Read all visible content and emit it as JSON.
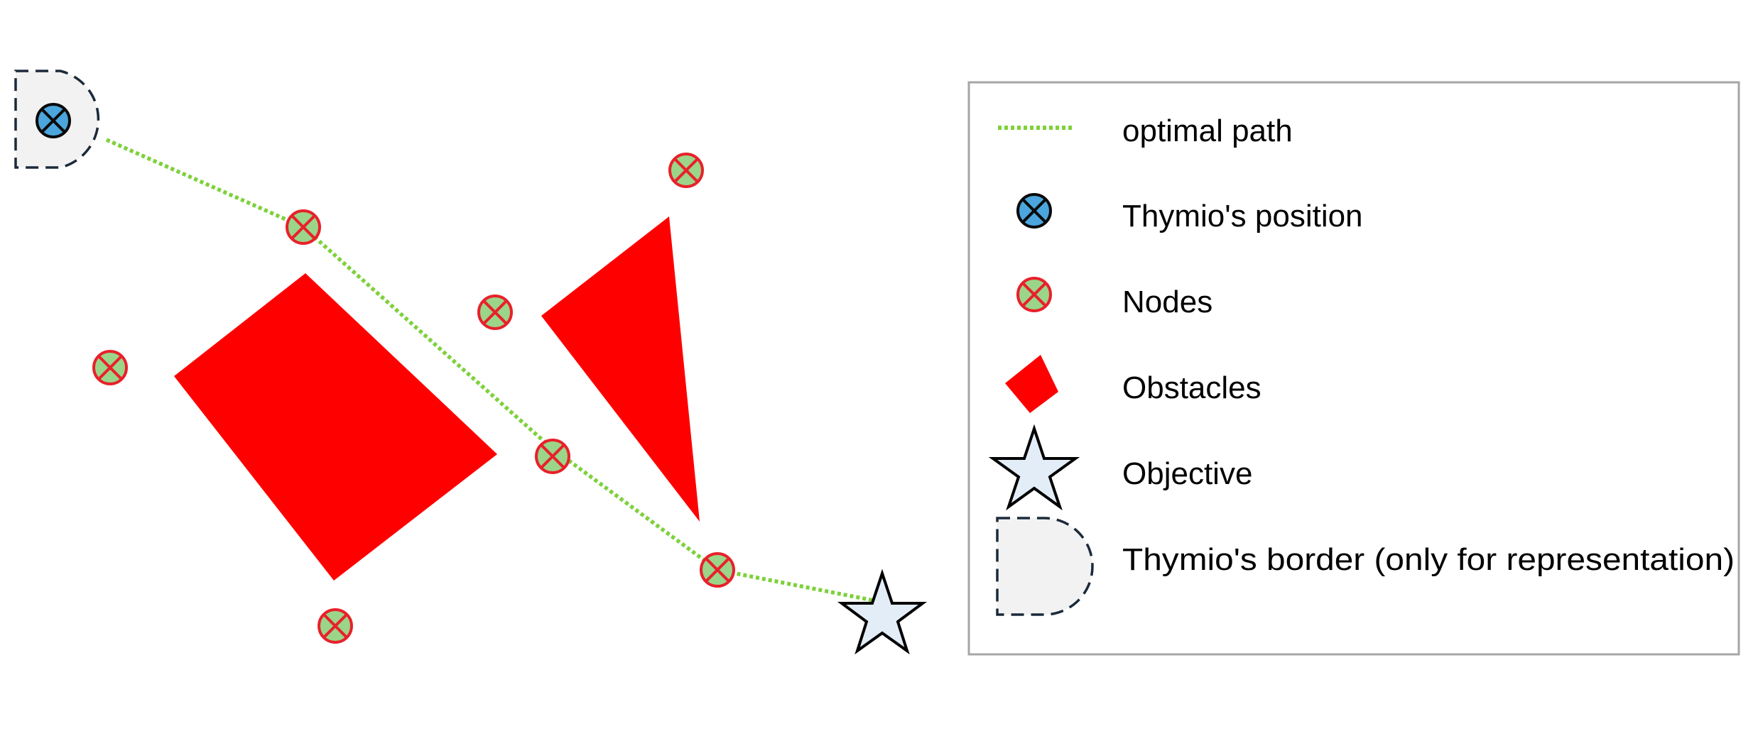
{
  "colors": {
    "path": "#7dd13a",
    "node_fill": "#9bd58a",
    "node_stroke": "#e8212a",
    "thymio_fill": "#4aa6dc",
    "thymio_stroke": "#0a0a0a",
    "obstacle": "#ff0000",
    "objective_fill": "#e3edf7",
    "objective_stroke": "#000000",
    "border_fill": "#f2f2f2",
    "border_stroke": "#1b2a3a",
    "legend_frame": "#a6a6a6"
  },
  "legend": {
    "optimal_path": "optimal path",
    "thymio_position": "Thymio's position",
    "nodes": "Nodes",
    "obstacles": "Obstacles",
    "objective": "Objective",
    "thymio_border": "Thymio's border (only for representation)"
  },
  "icons": {
    "path": "dotted-line-icon",
    "thymio": "crossed-circle-icon",
    "node": "crossed-circle-icon",
    "obstacle": "red-polygon-icon",
    "objective": "star-icon",
    "border": "half-rounded-square-icon"
  }
}
